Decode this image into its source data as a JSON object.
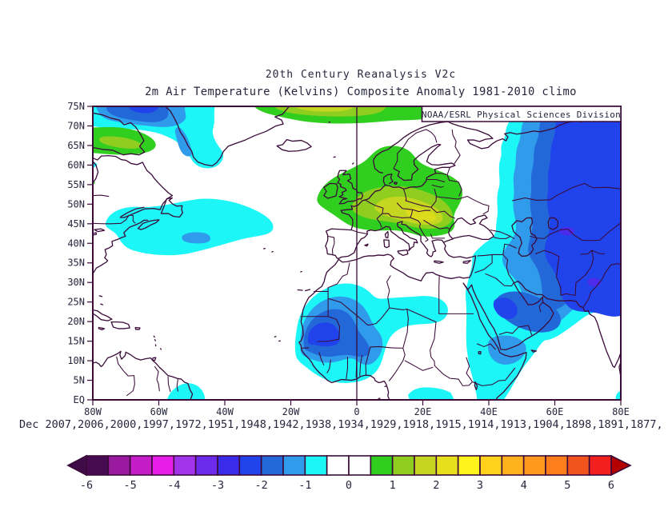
{
  "header": {
    "title": "20th Century Reanalysis V2c",
    "subtitle": "2m Air Temperature (Kelvins) Composite Anomaly 1981-2010 climo"
  },
  "map": {
    "source_label": "NOAA/ESRL Physical Sciences Division",
    "lat_ticks": [
      {
        "label": "75N",
        "lat": 75
      },
      {
        "label": "70N",
        "lat": 70
      },
      {
        "label": "65N",
        "lat": 65
      },
      {
        "label": "60N",
        "lat": 60
      },
      {
        "label": "55N",
        "lat": 55
      },
      {
        "label": "50N",
        "lat": 50
      },
      {
        "label": "45N",
        "lat": 45
      },
      {
        "label": "40N",
        "lat": 40
      },
      {
        "label": "35N",
        "lat": 35
      },
      {
        "label": "30N",
        "lat": 30
      },
      {
        "label": "25N",
        "lat": 25
      },
      {
        "label": "20N",
        "lat": 20
      },
      {
        "label": "15N",
        "lat": 15
      },
      {
        "label": "10N",
        "lat": 10
      },
      {
        "label": "5N",
        "lat": 5
      },
      {
        "label": "EQ",
        "lat": 0
      }
    ],
    "lon_ticks": [
      {
        "label": "80W",
        "lon": -80
      },
      {
        "label": "60W",
        "lon": -60
      },
      {
        "label": "40W",
        "lon": -40
      },
      {
        "label": "20W",
        "lon": -20
      },
      {
        "label": "0",
        "lon": 0
      },
      {
        "label": "20E",
        "lon": 20
      },
      {
        "label": "40E",
        "lon": 40
      },
      {
        "label": "60E",
        "lon": 60
      },
      {
        "label": "80E",
        "lon": 80
      }
    ]
  },
  "composite": {
    "dates_label": "Dec 2007,2006,2000,1997,1972,1951,1948,1942,1938,1934,1929,1918,1915,1914,1913,1904,1898,1891,1877,"
  },
  "colorbar": {
    "labels": [
      {
        "label": "-6",
        "v": -6
      },
      {
        "label": "-5",
        "v": -5
      },
      {
        "label": "-4",
        "v": -4
      },
      {
        "label": "-3",
        "v": -3
      },
      {
        "label": "-2",
        "v": -2
      },
      {
        "label": "-1",
        "v": -1
      },
      {
        "label": "0",
        "v": 0
      },
      {
        "label": "1",
        "v": 1
      },
      {
        "label": "2",
        "v": 2
      },
      {
        "label": "3",
        "v": 3
      },
      {
        "label": "4",
        "v": 4
      },
      {
        "label": "5",
        "v": 5
      },
      {
        "label": "6",
        "v": 6
      }
    ],
    "cell_colors": [
      "#470B52",
      "#991A9E",
      "#C41CC6",
      "#E81EE8",
      "#A133EB",
      "#6C2BEB",
      "#3A2BEB",
      "#2143EB",
      "#2368D8",
      "#2F9BEA",
      "#1CF6F6",
      "#FFFFFF",
      "#FFFFFF",
      "#2FCE1F",
      "#8FCE1F",
      "#C4D61F",
      "#E6E01C",
      "#FFF51C",
      "#FFD21C",
      "#FFB21C",
      "#FF9A1C",
      "#FF7E1C",
      "#F2541E",
      "#F21F1F"
    ],
    "left_arrow_color": "#3F0B49",
    "right_arrow_color": "#B50000"
  },
  "palette": {
    "cyan": "#1CF6F6",
    "sky_blue": "#2F9BEA",
    "medium_blue": "#2368D8",
    "royal_blue": "#2143EB",
    "violet_blue": "#4C2BEB",
    "green": "#2FCE1F",
    "yellow_green": "#8FCE1F",
    "olive": "#C4D61F",
    "yellow_core": "#DCDC1C",
    "coast": "#3A0A38",
    "text": "#26263E"
  },
  "chart_data": {
    "type": "heatmap",
    "title": "20th Century Reanalysis V2c",
    "subtitle": "2m Air Temperature (Kelvins) Composite Anomaly 1981-2010 climo",
    "source": "NOAA/ESRL Physical Sciences Division",
    "variable": "2m Air Temperature",
    "units": "Kelvins",
    "climatology": "1981-2010",
    "month": "Dec",
    "composite_years": [
      2007,
      2006,
      2000,
      1997,
      1972,
      1951,
      1948,
      1942,
      1938,
      1934,
      1929,
      1918,
      1915,
      1914,
      1913,
      1904,
      1898,
      1891,
      1877
    ],
    "lon_range_deg": [
      -80,
      80
    ],
    "lat_range_deg": [
      0,
      75
    ],
    "colorbar_values": [
      -6,
      -5,
      -4,
      -3,
      -2,
      -1,
      0,
      1,
      2,
      3,
      4,
      5,
      6
    ],
    "colorbar_step_per_cell": 0.5,
    "legend_position": "bottom",
    "grid": false,
    "anomaly_regions_estimated_K": [
      {
        "region": "Northwest Atlantic (33-50N, 75-25W)",
        "anomaly": -1
      },
      {
        "region": "Small core inside NW Atlantic blob (48W, 41N)",
        "anomaly": -1.5
      },
      {
        "region": "Baffin Bay / Davis Strait (55-80W, 69-75N)",
        "anomaly": -2.5
      },
      {
        "region": "Northeastern Canada (Baffin/Ungava, 60-80W, 63-70N)",
        "anomaly": 1.5
      },
      {
        "region": "Norwegian-Greenland Sea top edge (30W-28E, 70-75N)",
        "anomaly": 2
      },
      {
        "region": "Central Europe (UK to Balkans/Baltic)",
        "anomaly": 2
      },
      {
        "region": "Western Russia / Central Asia (42-80E, 25-75N)",
        "anomaly": -2.5
      },
      {
        "region": "Inner core west-central Asia (62-66E, 42-45N)",
        "anomaly": -3.5
      },
      {
        "region": "West Africa / Sahel (18W-10E, 5-28N)",
        "anomaly": -2.5
      },
      {
        "region": "Arabian Peninsula (42-62E, 8-28N)",
        "anomaly": -2
      },
      {
        "region": "NE Africa Sudan/Ethiopia (33-47E, 0-15N)",
        "anomaly": -1
      },
      {
        "region": "Northern India / Pakistan (62-80E, 21-35N)",
        "anomaly": -3
      },
      {
        "region": "Equatorial central Africa (16-29E, 0-3N)",
        "anomaly": -1
      },
      {
        "region": "Amazon mouth (57-46W, 0-4N)",
        "anomaly": -1
      }
    ]
  }
}
